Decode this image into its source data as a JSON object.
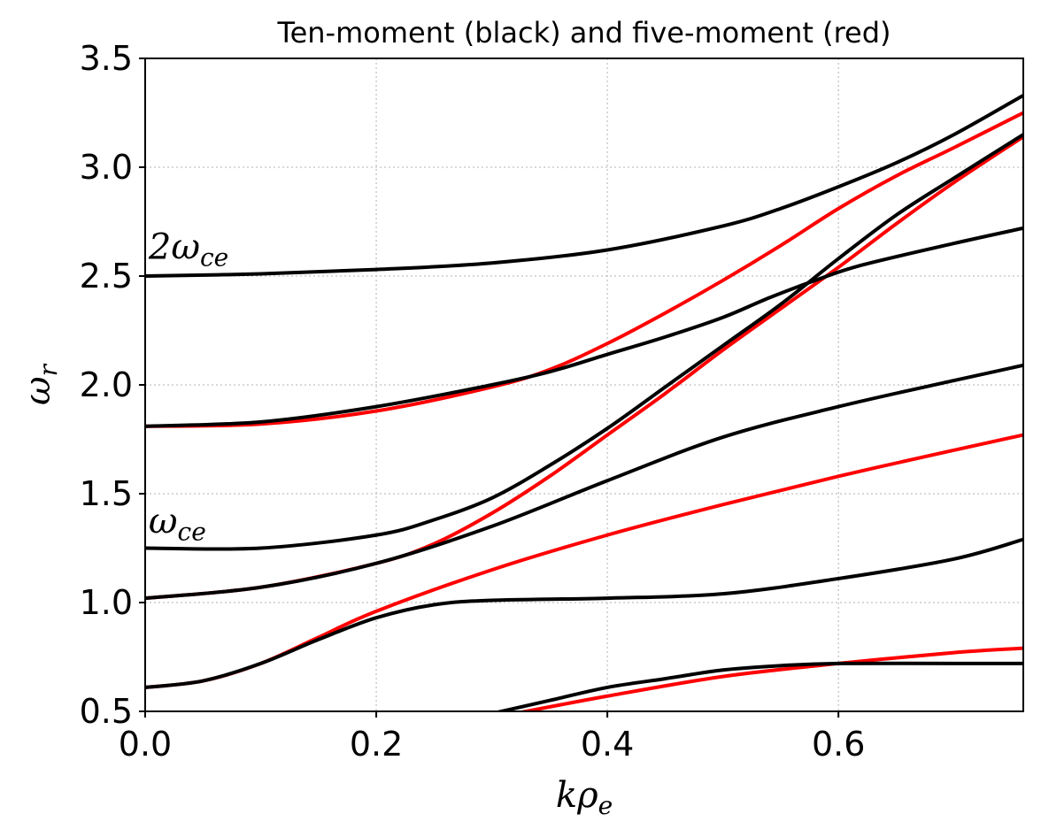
{
  "chart_data": {
    "type": "line",
    "title": "Ten-moment (black) and five-moment (red)",
    "xlabel": {
      "base": "kρ",
      "sub": "e"
    },
    "ylabel": {
      "base": "ω",
      "sub": "r"
    },
    "xlim": [
      0.0,
      0.76
    ],
    "ylim": [
      0.5,
      3.5
    ],
    "xticks": [
      0.0,
      0.2,
      0.4,
      0.6
    ],
    "xtick_labels": [
      "0.0",
      "0.2",
      "0.4",
      "0.6"
    ],
    "yticks": [
      0.5,
      1.0,
      1.5,
      2.0,
      2.5,
      3.0,
      3.5
    ],
    "ytick_labels": [
      "0.5",
      "1.0",
      "1.5",
      "2.0",
      "2.5",
      "3.0",
      "3.5"
    ],
    "grid": true,
    "annotations": [
      {
        "base": "2ω",
        "sub": "ce",
        "x": 0.003,
        "y": 2.58
      },
      {
        "base": "ω",
        "sub": "ce",
        "x": 0.003,
        "y": 1.32
      }
    ],
    "colors": {
      "ten_moment": "#000000",
      "five_moment": "#ff0000"
    },
    "series": [
      {
        "group": "ten_moment",
        "points": [
          [
            0,
            2.5
          ],
          [
            0.1,
            2.51
          ],
          [
            0.2,
            2.53
          ],
          [
            0.3,
            2.56
          ],
          [
            0.4,
            2.62
          ],
          [
            0.5,
            2.73
          ],
          [
            0.55,
            2.81
          ],
          [
            0.6,
            2.91
          ],
          [
            0.65,
            3.02
          ],
          [
            0.7,
            3.15
          ],
          [
            0.76,
            3.33
          ]
        ]
      },
      {
        "group": "ten_moment",
        "points": [
          [
            0,
            1.81
          ],
          [
            0.1,
            1.83
          ],
          [
            0.2,
            1.9
          ],
          [
            0.3,
            2.0
          ],
          [
            0.35,
            2.06
          ],
          [
            0.4,
            2.14
          ],
          [
            0.45,
            2.22
          ],
          [
            0.5,
            2.31
          ],
          [
            0.54,
            2.4
          ],
          [
            0.58,
            2.48
          ],
          [
            0.62,
            2.55
          ],
          [
            0.7,
            2.65
          ],
          [
            0.76,
            2.72
          ]
        ]
      },
      {
        "group": "ten_moment",
        "points": [
          [
            0,
            1.25
          ],
          [
            0.1,
            1.25
          ],
          [
            0.2,
            1.31
          ],
          [
            0.25,
            1.38
          ],
          [
            0.3,
            1.48
          ],
          [
            0.35,
            1.63
          ],
          [
            0.4,
            1.8
          ],
          [
            0.45,
            1.99
          ],
          [
            0.5,
            2.18
          ],
          [
            0.55,
            2.37
          ],
          [
            0.6,
            2.58
          ],
          [
            0.65,
            2.78
          ],
          [
            0.7,
            2.95
          ],
          [
            0.76,
            3.15
          ]
        ]
      },
      {
        "group": "ten_moment",
        "points": [
          [
            0,
            1.02
          ],
          [
            0.1,
            1.07
          ],
          [
            0.2,
            1.18
          ],
          [
            0.3,
            1.35
          ],
          [
            0.4,
            1.56
          ],
          [
            0.5,
            1.76
          ],
          [
            0.6,
            1.9
          ],
          [
            0.7,
            2.02
          ],
          [
            0.76,
            2.09
          ]
        ]
      },
      {
        "group": "ten_moment",
        "points": [
          [
            0,
            0.61
          ],
          [
            0.05,
            0.64
          ],
          [
            0.1,
            0.72
          ],
          [
            0.15,
            0.83
          ],
          [
            0.2,
            0.93
          ],
          [
            0.25,
            0.99
          ],
          [
            0.3,
            1.01
          ],
          [
            0.4,
            1.02
          ],
          [
            0.5,
            1.04
          ],
          [
            0.6,
            1.11
          ],
          [
            0.7,
            1.2
          ],
          [
            0.76,
            1.29
          ]
        ]
      },
      {
        "group": "ten_moment",
        "points": [
          [
            0.3,
            0.49
          ],
          [
            0.35,
            0.55
          ],
          [
            0.4,
            0.61
          ],
          [
            0.45,
            0.65
          ],
          [
            0.5,
            0.69
          ],
          [
            0.55,
            0.71
          ],
          [
            0.6,
            0.72
          ],
          [
            0.7,
            0.72
          ],
          [
            0.76,
            0.72
          ]
        ]
      },
      {
        "group": "five_moment",
        "points": [
          [
            0,
            1.81
          ],
          [
            0.1,
            1.82
          ],
          [
            0.2,
            1.88
          ],
          [
            0.3,
            1.99
          ],
          [
            0.35,
            2.07
          ],
          [
            0.4,
            2.19
          ],
          [
            0.45,
            2.33
          ],
          [
            0.5,
            2.48
          ],
          [
            0.55,
            2.64
          ],
          [
            0.6,
            2.81
          ],
          [
            0.65,
            2.96
          ],
          [
            0.7,
            3.09
          ],
          [
            0.76,
            3.25
          ]
        ]
      },
      {
        "group": "five_moment",
        "points": [
          [
            0,
            1.02
          ],
          [
            0.1,
            1.07
          ],
          [
            0.2,
            1.18
          ],
          [
            0.25,
            1.27
          ],
          [
            0.3,
            1.41
          ],
          [
            0.35,
            1.58
          ],
          [
            0.4,
            1.77
          ],
          [
            0.45,
            1.96
          ],
          [
            0.5,
            2.16
          ],
          [
            0.55,
            2.35
          ],
          [
            0.6,
            2.54
          ],
          [
            0.65,
            2.74
          ],
          [
            0.7,
            2.93
          ],
          [
            0.76,
            3.14
          ]
        ]
      },
      {
        "group": "five_moment",
        "points": [
          [
            0,
            0.61
          ],
          [
            0.05,
            0.64
          ],
          [
            0.1,
            0.72
          ],
          [
            0.15,
            0.84
          ],
          [
            0.2,
            0.96
          ],
          [
            0.3,
            1.15
          ],
          [
            0.4,
            1.31
          ],
          [
            0.5,
            1.45
          ],
          [
            0.6,
            1.58
          ],
          [
            0.7,
            1.7
          ],
          [
            0.76,
            1.77
          ]
        ]
      },
      {
        "group": "five_moment",
        "points": [
          [
            0.32,
            0.49
          ],
          [
            0.4,
            0.57
          ],
          [
            0.5,
            0.66
          ],
          [
            0.6,
            0.72
          ],
          [
            0.7,
            0.77
          ],
          [
            0.76,
            0.79
          ]
        ]
      }
    ]
  }
}
